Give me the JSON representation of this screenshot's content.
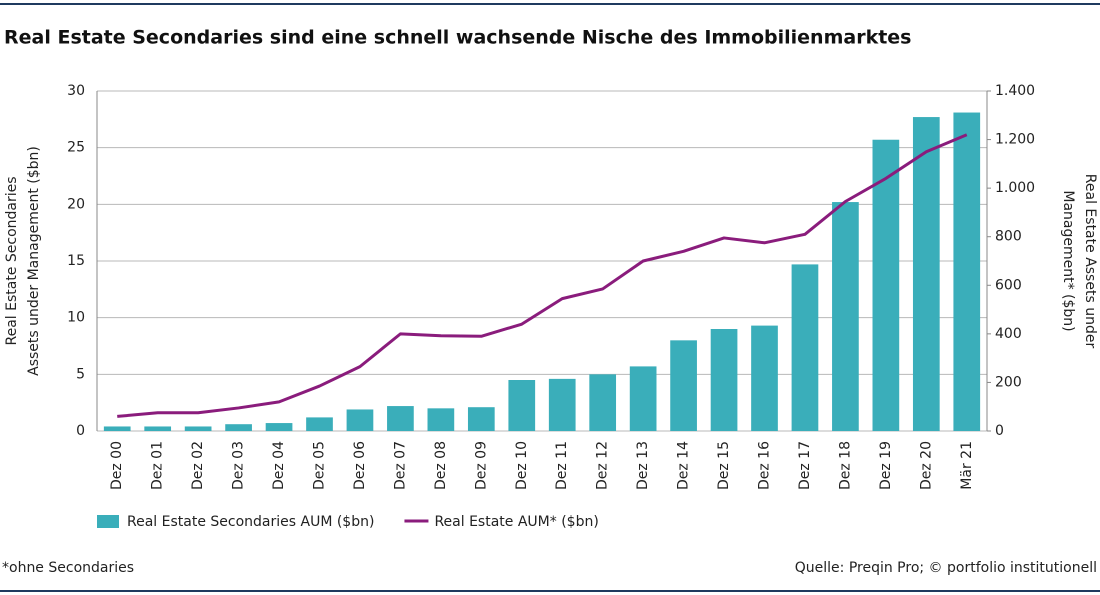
{
  "chart_data": {
    "type": "combo",
    "title": "Real Estate Secondaries sind eine schnell wachsende Nische des Immobilienmarktes",
    "y_label": [
      "Real Estate Secondaries",
      "Assets under Management ($bn)"
    ],
    "y2_label": [
      "Real Estate Assets under",
      "Management* ($bn)"
    ],
    "categories": [
      "Dez 00",
      "Dez 01",
      "Dez 02",
      "Dez 03",
      "Dez 04",
      "Dez 05",
      "Dez 06",
      "Dez 07",
      "Dez 08",
      "Dez 09",
      "Dez 10",
      "Dez 11",
      "Dez 12",
      "Dez 13",
      "Dez 14",
      "Dez 15",
      "Dez 16",
      "Dez 17",
      "Dez 18",
      "Dez 19",
      "Dez 20",
      "Mär 21"
    ],
    "series": [
      {
        "name": "Real Estate Secondaries AUM ($bn)",
        "type": "bar",
        "axis": "y",
        "color": "#3aaeba",
        "values": [
          0.4,
          0.4,
          0.4,
          0.6,
          0.7,
          1.2,
          1.9,
          2.2,
          2.0,
          2.1,
          4.5,
          4.6,
          5.0,
          5.7,
          8.0,
          9.0,
          9.3,
          14.7,
          20.2,
          25.7,
          27.7,
          28.1
        ]
      },
      {
        "name": "Real Estate AUM* ($bn)",
        "type": "line",
        "axis": "y2",
        "color": "#8a1c7c",
        "values": [
          60,
          75,
          75,
          95,
          120,
          185,
          265,
          400,
          392,
          390,
          440,
          545,
          585,
          700,
          740,
          795,
          775,
          810,
          945,
          1040,
          1150,
          1220
        ]
      }
    ],
    "ylim": [
      0,
      30
    ],
    "yticks": [
      0,
      5,
      10,
      15,
      20,
      25,
      30
    ],
    "y2lim": [
      0,
      1400
    ],
    "y2ticks": [
      0,
      200,
      400,
      600,
      800,
      {
        "value": 1000,
        "label": "1.000"
      },
      {
        "value": 1200,
        "label": "1.200"
      },
      {
        "value": 1400,
        "label": "1.400"
      }
    ],
    "grid": true,
    "legend": "bottom",
    "footnote": "*ohne Secondaries",
    "source": "Quelle: Preqin Pro; © portfolio institutionell"
  }
}
